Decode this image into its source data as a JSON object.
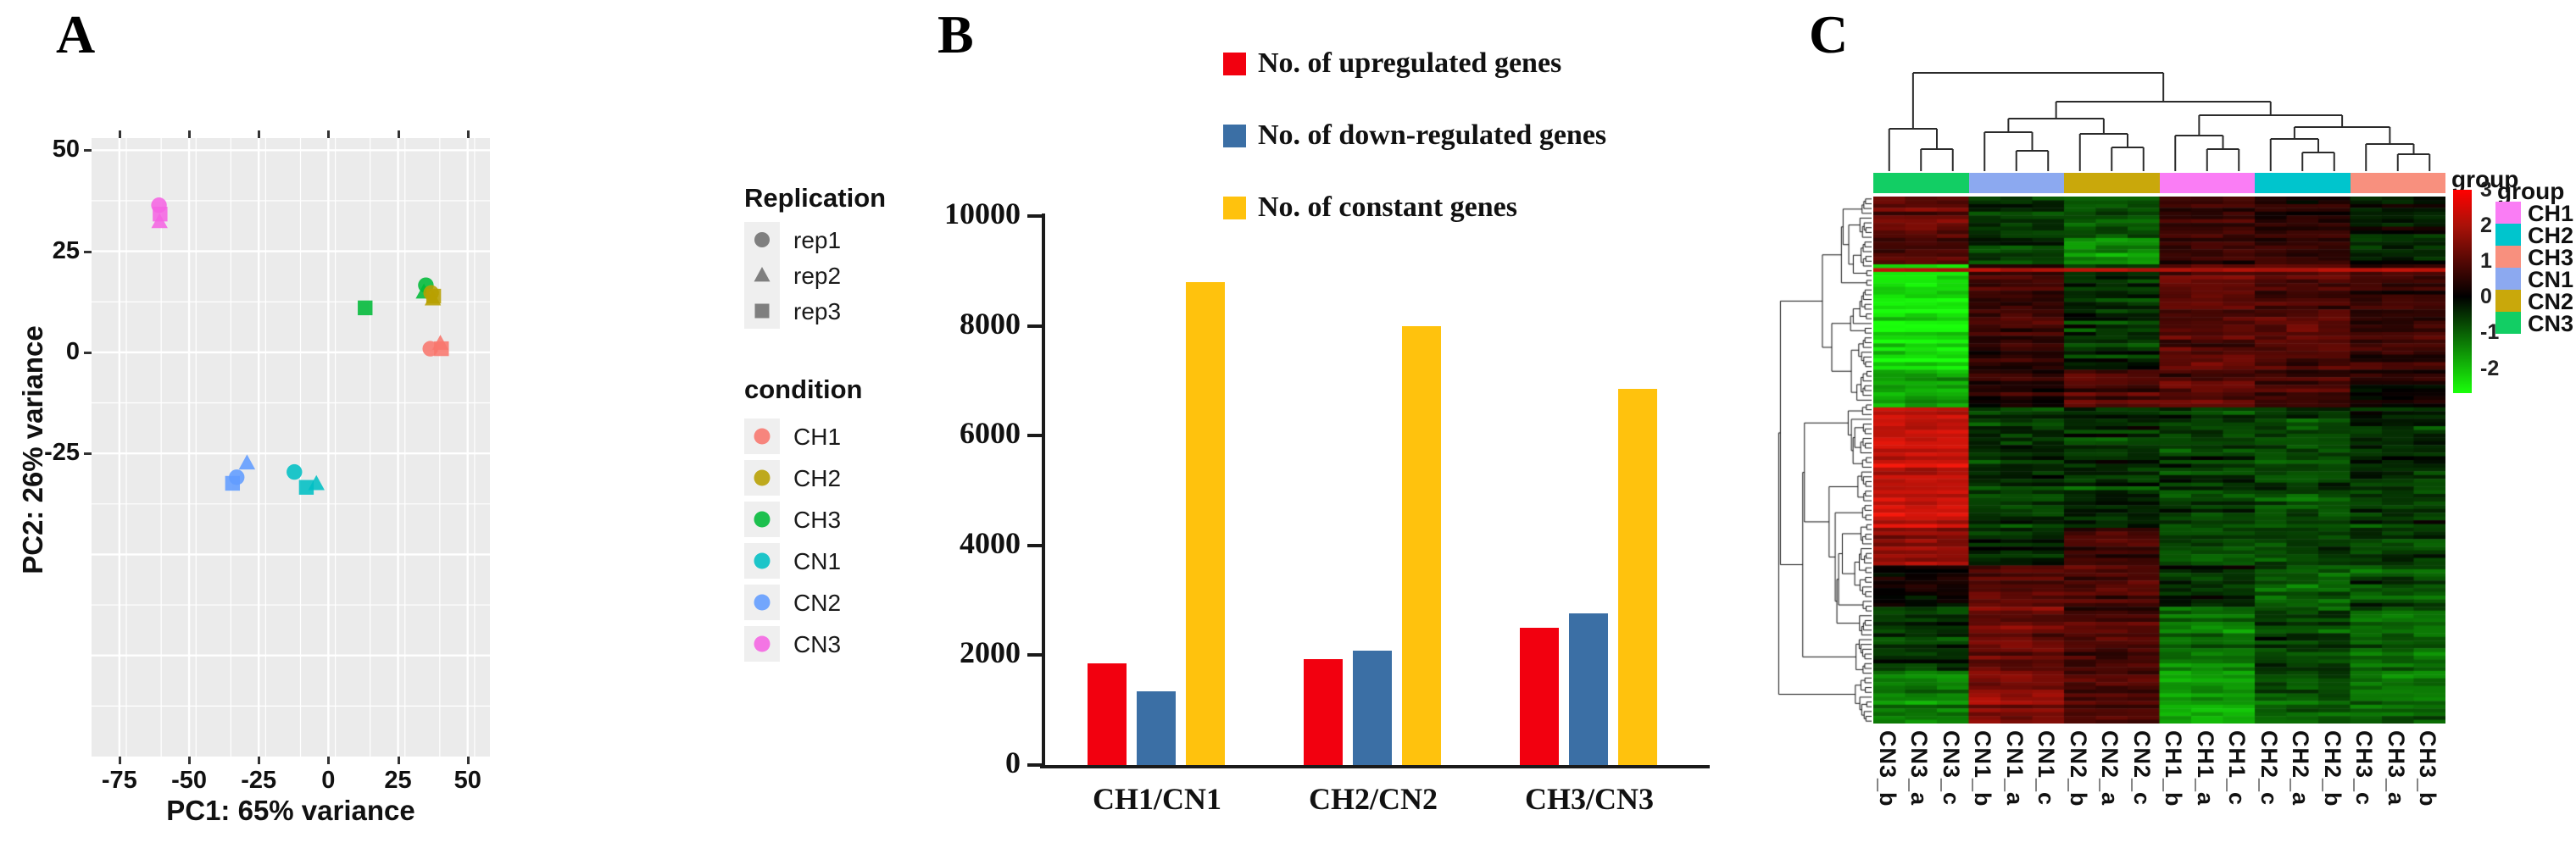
{
  "figure": {
    "panel_a_label": "A",
    "panel_b_label": "B",
    "panel_c_label": "C"
  },
  "chart_data": [
    {
      "type": "scatter",
      "panel": "A",
      "xlabel": "PC1: 65% variance",
      "ylabel": "PC2: 26% variance",
      "x_ticks": [
        -75,
        -50,
        -25,
        0,
        25,
        50
      ],
      "y_ticks": [
        50,
        25,
        0,
        -25
      ],
      "xlim": [
        -85,
        58
      ],
      "ylim": [
        -100,
        53
      ],
      "grid": true,
      "panel_background": "#EBEBEB",
      "replication_legend": {
        "title": "Replication",
        "items": [
          {
            "label": "rep1",
            "shape": "circle"
          },
          {
            "label": "rep2",
            "shape": "triangle"
          },
          {
            "label": "rep3",
            "shape": "square"
          }
        ]
      },
      "condition_legend": {
        "title": "condition",
        "items": [
          {
            "label": "CH1",
            "color": "#F8766D"
          },
          {
            "label": "CH2",
            "color": "#B79F00"
          },
          {
            "label": "CH3",
            "color": "#00BA38"
          },
          {
            "label": "CN1",
            "color": "#00BFC4"
          },
          {
            "label": "CN2",
            "color": "#619CFF"
          },
          {
            "label": "CN3",
            "color": "#F564E3"
          }
        ]
      },
      "points": [
        {
          "condition": "CN3",
          "rep": "rep1",
          "x": -60.8,
          "y": 36.4
        },
        {
          "condition": "CN3",
          "rep": "rep3",
          "x": -60.4,
          "y": 34.2
        },
        {
          "condition": "CN3",
          "rep": "rep2",
          "x": -60.6,
          "y": 32.3
        },
        {
          "condition": "CH3",
          "rep": "rep3",
          "x": 13.2,
          "y": 11.0
        },
        {
          "condition": "CH3",
          "rep": "rep1",
          "x": 35.0,
          "y": 16.6
        },
        {
          "condition": "CH3",
          "rep": "rep2",
          "x": 34.3,
          "y": 14.9
        },
        {
          "condition": "CH2",
          "rep": "rep1",
          "x": 36.9,
          "y": 14.7
        },
        {
          "condition": "CH2",
          "rep": "rep2",
          "x": 37.5,
          "y": 13.2
        },
        {
          "condition": "CH2",
          "rep": "rep3",
          "x": 37.8,
          "y": 13.9
        },
        {
          "condition": "CH1",
          "rep": "rep1",
          "x": 36.6,
          "y": 0.9
        },
        {
          "condition": "CH1",
          "rep": "rep2",
          "x": 40.2,
          "y": 2.2
        },
        {
          "condition": "CH1",
          "rep": "rep3",
          "x": 40.6,
          "y": 0.9
        },
        {
          "condition": "CN2",
          "rep": "rep2",
          "x": -29.2,
          "y": -27.4
        },
        {
          "condition": "CN2",
          "rep": "rep1",
          "x": -32.9,
          "y": -30.9
        },
        {
          "condition": "CN2",
          "rep": "rep3",
          "x": -34.4,
          "y": -32.4
        },
        {
          "condition": "CN1",
          "rep": "rep1",
          "x": -12.2,
          "y": -29.6
        },
        {
          "condition": "CN1",
          "rep": "rep3",
          "x": -7.9,
          "y": -33.4
        },
        {
          "condition": "CN1",
          "rep": "rep2",
          "x": -4.3,
          "y": -32.5
        }
      ]
    },
    {
      "type": "bar",
      "panel": "B",
      "categories": [
        "CH1/CN1",
        "CH2/CN2",
        "CH3/CN3"
      ],
      "series": [
        {
          "name": "No. of upregulated genes",
          "color": "#F2000F",
          "values": [
            1850,
            1930,
            2500
          ]
        },
        {
          "name": "No. of down-regulated genes",
          "color": "#3B6FA5",
          "values": [
            1350,
            2080,
            2760
          ]
        },
        {
          "name": "No. of constant genes",
          "color": "#FFC20D",
          "values": [
            8800,
            8000,
            6850
          ]
        }
      ],
      "ylim": [
        0,
        10000
      ],
      "y_ticks": [
        0,
        2000,
        4000,
        6000,
        8000,
        10000
      ],
      "legend_position": "top",
      "grid": false
    },
    {
      "type": "heatmap",
      "panel": "C",
      "columns": [
        "CN3_b",
        "CN3_a",
        "CN3_c",
        "CN1_b",
        "CN1_a",
        "CN1_c",
        "CN2_b",
        "CN2_a",
        "CN2_c",
        "CH1_b",
        "CH1_a",
        "CH1_c",
        "CH2_c",
        "CH2_a",
        "CH2_b",
        "CH3_c",
        "CH3_a",
        "CH3_b"
      ],
      "column_groups": [
        "CN3",
        "CN3",
        "CN3",
        "CN1",
        "CN1",
        "CN1",
        "CN2",
        "CN2",
        "CN2",
        "CH1",
        "CH1",
        "CH1",
        "CH2",
        "CH2",
        "CH2",
        "CH3",
        "CH3",
        "CH3"
      ],
      "annotation_label": "group",
      "legend_title": "group",
      "legend_items": [
        {
          "label": "CH1",
          "color": "#FA7DF5"
        },
        {
          "label": "CH2",
          "color": "#00C5CD"
        },
        {
          "label": "CH3",
          "color": "#F8907E"
        },
        {
          "label": "CN1",
          "color": "#8CA9F0"
        },
        {
          "label": "CN2",
          "color": "#C9A80B"
        },
        {
          "label": "CN3",
          "color": "#12CE64"
        }
      ],
      "scale_ticks": [
        3,
        2,
        1,
        0,
        -1,
        -2
      ],
      "scale_range": [
        3,
        -2.7
      ],
      "row_dendrogram": true,
      "col_dendrogram": true,
      "expression_blocks": [
        {
          "row_fraction": 0.075,
          "group_means": {
            "CN3": 1.1,
            "CN1": -0.5,
            "CN2": -0.9,
            "CH1": 0.7,
            "CH2": 0.4,
            "CH3": -0.2
          }
        },
        {
          "row_fraction": 0.055,
          "group_means": {
            "CN3": 0.9,
            "CN1": -0.7,
            "CN2": -1.5,
            "CH1": 0.6,
            "CH2": 0.6,
            "CH3": -0.4
          }
        },
        {
          "row_fraction": 0.2,
          "group_means": {
            "CN3": -2.3,
            "CN1": 0.7,
            "CN2": -0.5,
            "CH1": 1.0,
            "CH2": 1.0,
            "CH3": 0.7
          }
        },
        {
          "row_fraction": 0.07,
          "group_means": {
            "CN3": -1.8,
            "CN1": 0.5,
            "CN2": 0.9,
            "CH1": 1.1,
            "CH2": 0.8,
            "CH3": 0.2
          }
        },
        {
          "row_fraction": 0.23,
          "group_means": {
            "CN3": 2.3,
            "CN1": -0.5,
            "CN2": -0.5,
            "CH1": -0.6,
            "CH2": -0.8,
            "CH3": -0.5
          }
        },
        {
          "row_fraction": 0.07,
          "group_means": {
            "CN3": 1.6,
            "CN1": -0.3,
            "CN2": 0.7,
            "CH1": -0.8,
            "CH2": -0.6,
            "CH3": -0.7
          }
        },
        {
          "row_fraction": 0.08,
          "group_means": {
            "CN3": 0.2,
            "CN1": 0.9,
            "CN2": 1.0,
            "CH1": -0.5,
            "CH2": -1.0,
            "CH3": -0.8
          }
        },
        {
          "row_fraction": 0.12,
          "group_means": {
            "CN3": -0.6,
            "CN1": 1.2,
            "CN2": 0.8,
            "CH1": -1.2,
            "CH2": -0.7,
            "CH3": -1.0
          }
        },
        {
          "row_fraction": 0.1,
          "group_means": {
            "CN3": -1.3,
            "CN1": 1.4,
            "CN2": 0.9,
            "CH1": -1.7,
            "CH2": -0.9,
            "CH3": -1.1
          }
        }
      ]
    }
  ]
}
